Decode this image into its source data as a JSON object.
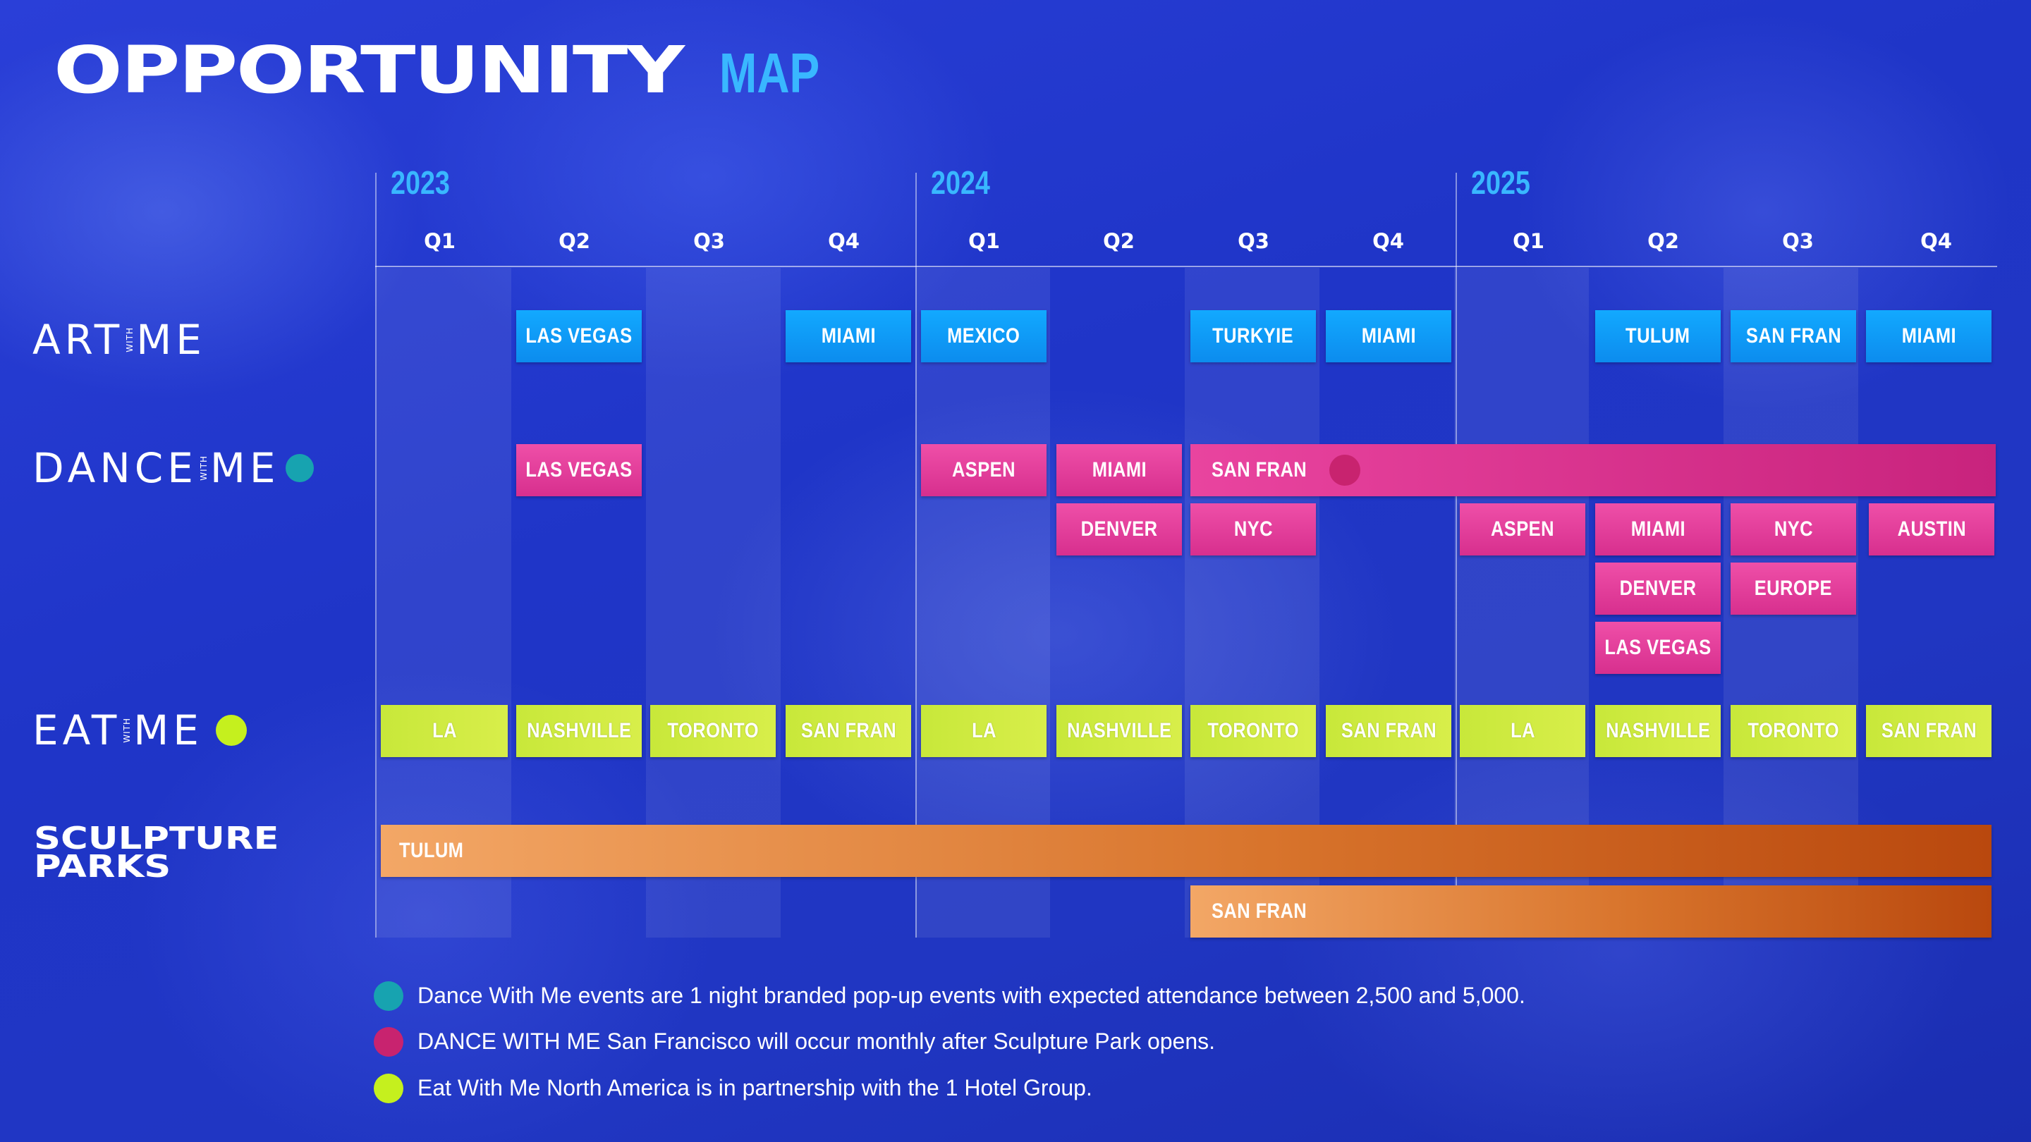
{
  "title": {
    "main": "OPPORTUNITY",
    "sub": "MAP"
  },
  "years": [
    "2023",
    "2024",
    "2025"
  ],
  "quarters": [
    "Q1",
    "Q2",
    "Q3",
    "Q4",
    "Q1",
    "Q2",
    "Q3",
    "Q4",
    "Q1",
    "Q2",
    "Q3",
    "Q4"
  ],
  "rows": {
    "art": {
      "label_left": "ART",
      "label_with": "WITH",
      "label_right": "ME"
    },
    "dance": {
      "label_left": "DANCE",
      "label_with": "WITH",
      "label_right": "ME"
    },
    "eat": {
      "label_left": "EAT",
      "label_with": "WITH",
      "label_right": "ME"
    },
    "sculpture": {
      "line1": "SCULPTURE",
      "line2": "PARKS"
    }
  },
  "events": {
    "art": [
      "LAS VEGAS",
      "MIAMI",
      "MEXICO",
      "TURKYIE",
      "MIAMI",
      "TULUM",
      "SAN FRAN",
      "MIAMI"
    ],
    "dance_row1": [
      "LAS VEGAS",
      "ASPEN",
      "MIAMI",
      "SAN FRAN"
    ],
    "dance_row2": [
      "DENVER",
      "NYC",
      "ASPEN",
      "MIAMI",
      "NYC",
      "AUSTIN"
    ],
    "dance_row3": [
      "DENVER",
      "EUROPE"
    ],
    "dance_row4": [
      "LAS VEGAS"
    ],
    "eat": [
      "LA",
      "NASHVILLE",
      "TORONTO",
      "SAN FRAN",
      "LA",
      "NASHVILLE",
      "TORONTO",
      "SAN FRAN",
      "LA",
      "NASHVILLE",
      "TORONTO",
      "SAN FRAN"
    ],
    "sculpture": [
      "TULUM",
      "SAN FRAN"
    ]
  },
  "notes": [
    "Dance With Me events are 1 night branded pop-up events with expected attendance between 2,500 and 5,000.",
    "DANCE WITH ME San Francisco will occur monthly after Sculpture Park opens.",
    "Eat With Me North America is in partnership with the 1 Hotel Group."
  ],
  "colors": {
    "art": "#12a9ff",
    "dance": "#e9449f",
    "eat": "#d2ec42",
    "sculpture": "#e08a44",
    "note_teal": "#17a3b0",
    "note_magenta": "#c8236f",
    "note_lime": "#c5f01e"
  }
}
